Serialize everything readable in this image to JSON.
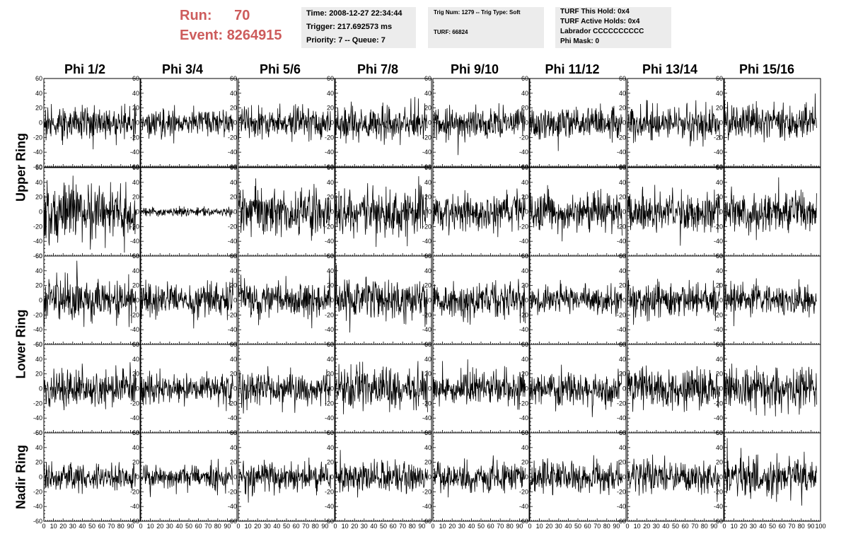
{
  "header": {
    "run_label": "Run:",
    "run_value": "70",
    "event_label": "Event:",
    "event_value": "8264915"
  },
  "info_box_1": {
    "time": "Time: 2008-12-27 22:34:44",
    "trigger": "Trigger: 217.692573 ms",
    "priority": "Priority: 7 -- Queue: 7"
  },
  "info_box_2": {
    "trig": "Trig Num: 1279 -- Trig Type: Soft",
    "turf": "TURF: 66824"
  },
  "info_box_3": {
    "hold": "TURF This Hold: 0x4",
    "active": "TURF Active Holds: 0x4",
    "labrador": "Labrador CCCCCCCCCC",
    "phimask": "Phi Mask: 0"
  },
  "chart_data": {
    "type": "line",
    "columns": [
      "Phi 1/2",
      "Phi 3/4",
      "Phi 5/6",
      "Phi 7/8",
      "Phi 9/10",
      "Phi 11/12",
      "Phi 13/14",
      "Phi 15/16"
    ],
    "rows": [
      "Upper Ring",
      "Upper Ring",
      "Lower Ring",
      "Lower Ring",
      "Nadir Ring"
    ],
    "row_labels": [
      "Upper Ring",
      "Lower Ring",
      "Nadir Ring"
    ],
    "ylim": [
      -60,
      60
    ],
    "xlim": [
      0,
      100
    ],
    "y_ticks": [
      "60",
      "40",
      "20",
      "0",
      "-20",
      "-40",
      "-60"
    ],
    "x_ticks_inner": [
      "0",
      "10",
      "20",
      "30",
      "40",
      "50",
      "60",
      "70",
      "80",
      "90"
    ],
    "x_ticks_last": [
      "0",
      "10",
      "20",
      "30",
      "40",
      "50",
      "60",
      "70",
      "80",
      "90",
      "100"
    ],
    "waveform_samples": 260,
    "amplitudes": [
      [
        11,
        9,
        10,
        11,
        11,
        12,
        12,
        11
      ],
      [
        18,
        3,
        17,
        16,
        13,
        13,
        14,
        14
      ],
      [
        14,
        11,
        12,
        14,
        12,
        9,
        12,
        11
      ],
      [
        13,
        10,
        12,
        14,
        12,
        12,
        13,
        14
      ],
      [
        10,
        9,
        10,
        11,
        10,
        11,
        11,
        13
      ]
    ],
    "grid": false,
    "line_color": "#000000"
  }
}
